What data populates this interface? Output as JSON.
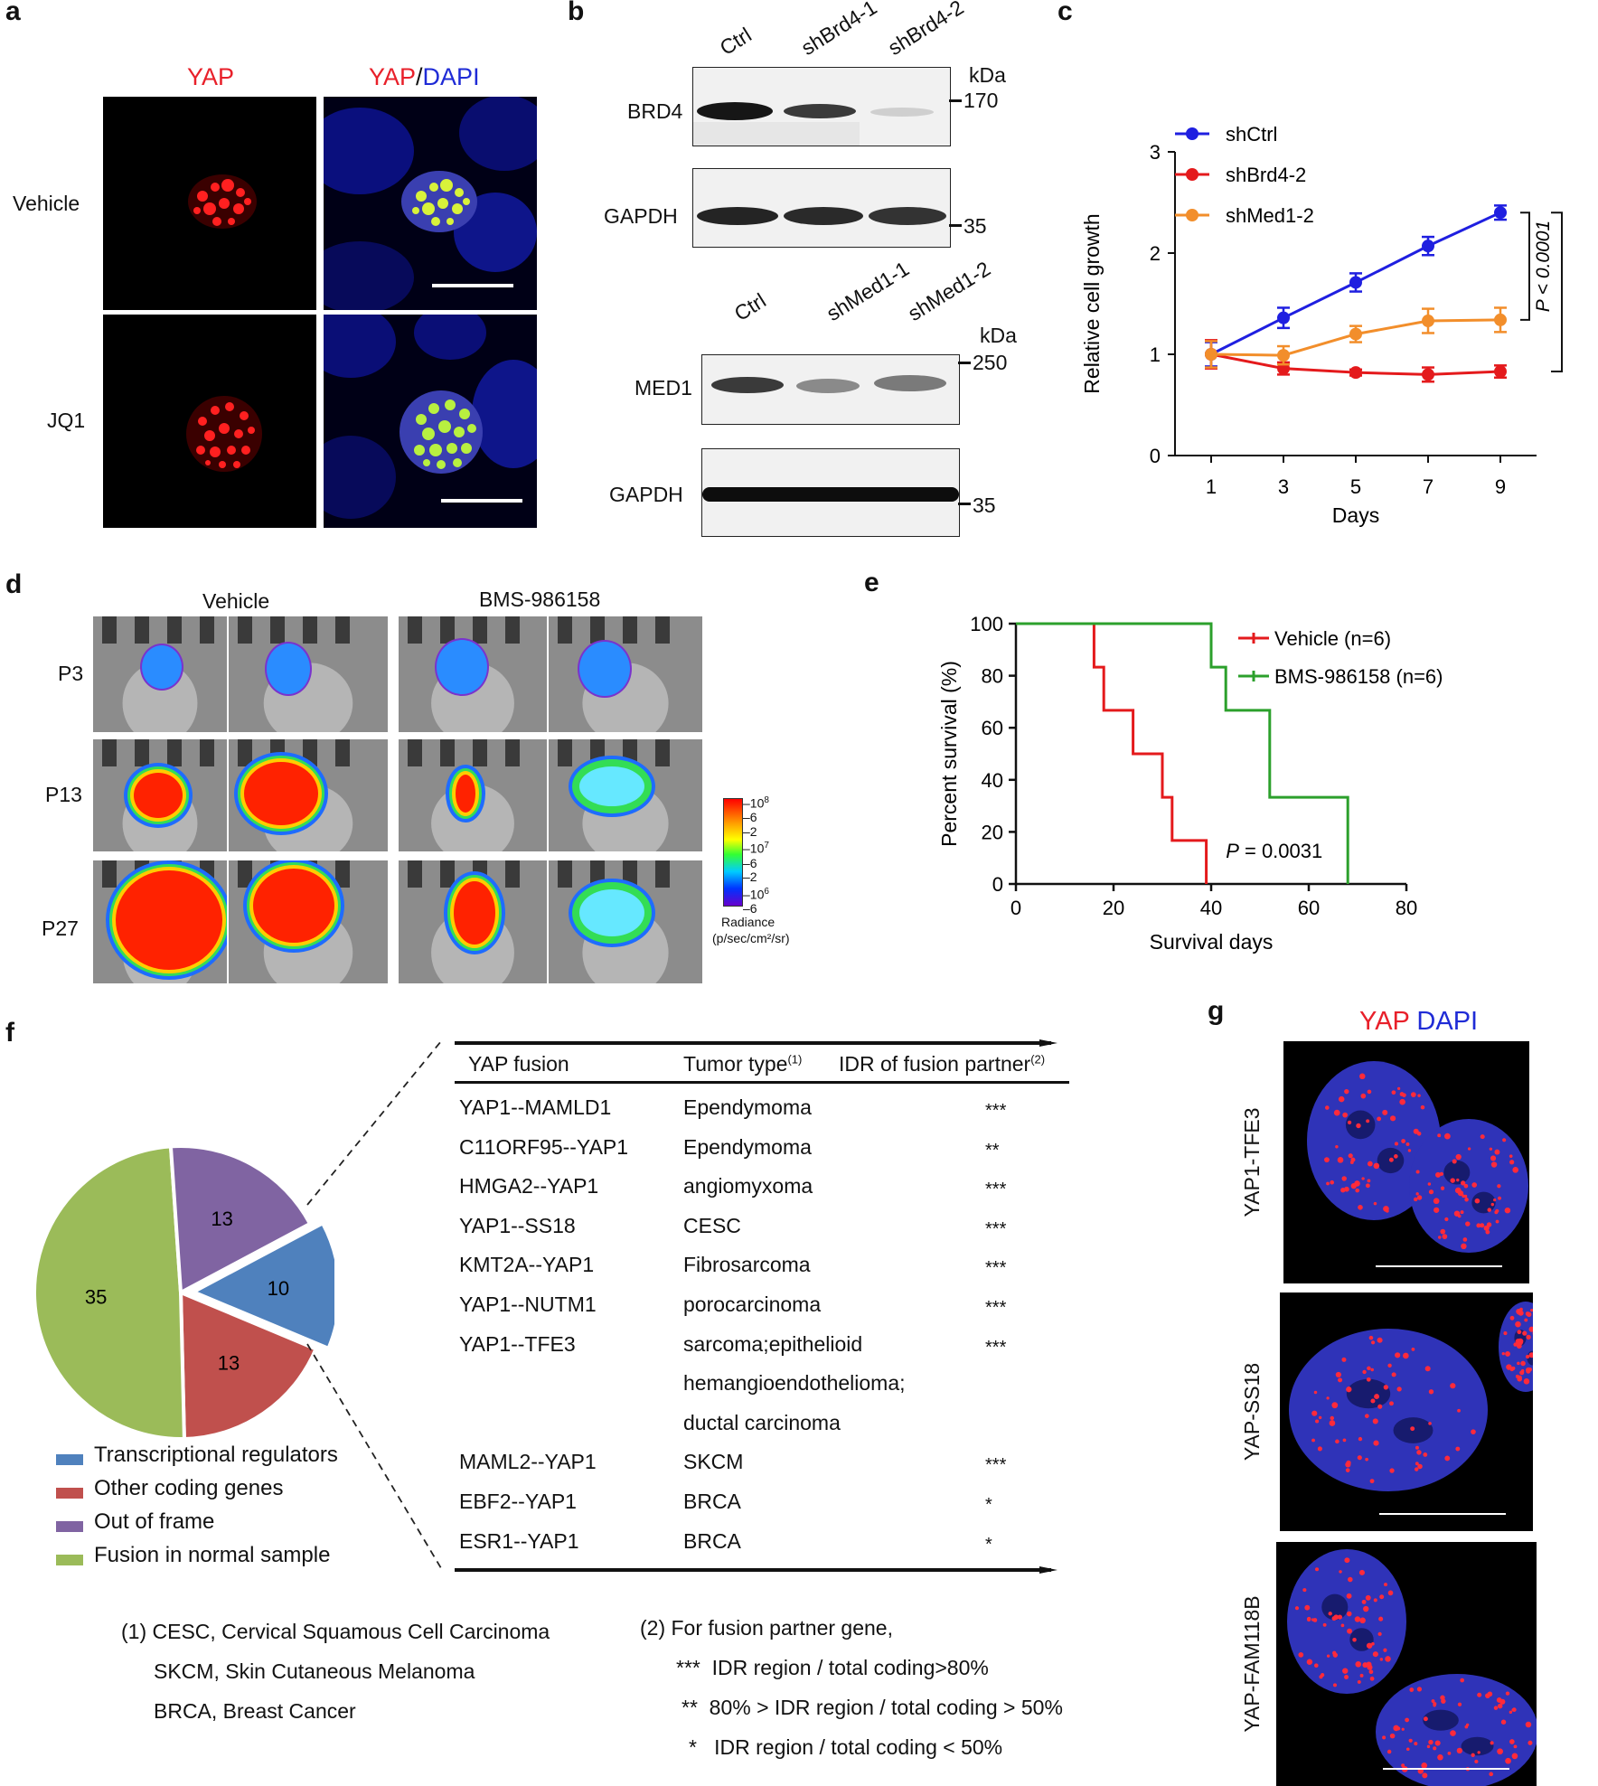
{
  "panel_a": {
    "letter": "a",
    "col1": "YAP",
    "col2_yap": "YAP",
    "col2_slash": "/",
    "col2_dapi": "DAPI",
    "row1": "Vehicle",
    "row2": "JQ1"
  },
  "panel_b": {
    "letter": "b",
    "top_lanes": [
      "Ctrl",
      "shBrd4-1",
      "shBrd4-2"
    ],
    "top_rows": [
      "BRD4",
      "GAPDH"
    ],
    "top_kda": "kDa",
    "top_markers": [
      "170",
      "35"
    ],
    "bottom_lanes": [
      "Ctrl",
      "shMed1-1",
      "shMed1-2"
    ],
    "bottom_rows": [
      "MED1",
      "GAPDH"
    ],
    "bottom_kda": "kDa",
    "bottom_markers": [
      "250",
      "35"
    ]
  },
  "panel_c": {
    "letter": "c",
    "chart_data": {
      "type": "line",
      "xlabel": "Days",
      "ylabel": "Relative cell growth",
      "x": [
        1,
        3,
        5,
        7,
        9
      ],
      "xlim": [
        0,
        10
      ],
      "ylim": [
        0,
        3
      ],
      "yticks": [
        0,
        1,
        2,
        3
      ],
      "legend_position": "top-left",
      "series": [
        {
          "name": "shCtrl",
          "color": "#1f1fe0",
          "values": [
            1.0,
            1.36,
            1.71,
            2.07,
            2.4
          ],
          "errors": [
            0.12,
            0.1,
            0.09,
            0.09,
            0.07
          ]
        },
        {
          "name": "shBrd4-2",
          "color": "#e41a1c",
          "values": [
            1.0,
            0.86,
            0.82,
            0.8,
            0.83
          ],
          "errors": [
            0.14,
            0.06,
            0.03,
            0.07,
            0.06
          ]
        },
        {
          "name": "shMed1-2",
          "color": "#f28e2b",
          "values": [
            1.0,
            0.99,
            1.2,
            1.33,
            1.34
          ],
          "errors": [
            0.13,
            0.09,
            0.08,
            0.12,
            0.12
          ]
        }
      ],
      "annotations": [
        "P < 0.0001",
        "P < 0.0001"
      ]
    }
  },
  "panel_d": {
    "letter": "d",
    "col1": "Vehicle",
    "col2": "BMS-986158",
    "rows": [
      "P3",
      "P13",
      "P27"
    ],
    "scale_ticks": [
      "10",
      "6",
      "2",
      "10",
      "6",
      "2",
      "10",
      "6"
    ],
    "scale_exp": [
      "8",
      "7",
      "6"
    ],
    "scale_label_1": "Radiance",
    "scale_label_2": "(p/sec/cm²/sr)"
  },
  "panel_e": {
    "letter": "e",
    "chart_data": {
      "type": "line",
      "xlabel": "Survival days",
      "ylabel": "Percent survival (%)",
      "xlim": [
        0,
        80
      ],
      "ylim": [
        0,
        100
      ],
      "xticks": [
        0,
        20,
        40,
        60,
        80
      ],
      "yticks": [
        0,
        20,
        40,
        60,
        80,
        100
      ],
      "legend_position": "top-right",
      "series": [
        {
          "name": "Vehicle (n=6)",
          "color": "#e41a1c",
          "steps": [
            [
              0,
              100
            ],
            [
              16,
              100
            ],
            [
              16,
              83.3
            ],
            [
              18,
              83.3
            ],
            [
              18,
              66.7
            ],
            [
              24,
              66.7
            ],
            [
              24,
              50
            ],
            [
              30,
              50
            ],
            [
              30,
              33.3
            ],
            [
              32,
              33.3
            ],
            [
              32,
              16.7
            ],
            [
              39,
              16.7
            ],
            [
              39,
              0
            ]
          ]
        },
        {
          "name": "BMS-986158 (n=6)",
          "color": "#2ca02c",
          "steps": [
            [
              0,
              100
            ],
            [
              40,
              100
            ],
            [
              40,
              83.3
            ],
            [
              43,
              83.3
            ],
            [
              43,
              66.7
            ],
            [
              52,
              66.7
            ],
            [
              52,
              33.3
            ],
            [
              68,
              33.3
            ],
            [
              68,
              0
            ]
          ]
        }
      ],
      "annotation": "P = 0.0031"
    }
  },
  "panel_f": {
    "letter": "f",
    "chart_data": {
      "type": "pie",
      "values": [
        10,
        13,
        35,
        13
      ],
      "labels": [
        "Transcriptional regulators",
        "Other coding genes",
        "Fusion in normal sample",
        "Out of frame"
      ],
      "colors": [
        "#4f81bd",
        "#c0504d",
        "#9bbb59",
        "#8064a2"
      ]
    },
    "legend": [
      "Transcriptional regulators",
      "Other coding genes",
      "Out of frame",
      "Fusion in normal sample"
    ],
    "legend_colors": [
      "#4f81bd",
      "#c0504d",
      "#8064a2",
      "#9bbb59"
    ],
    "table": {
      "headers": [
        "YAP fusion",
        "Tumor type",
        "IDR of fusion partner"
      ],
      "header_sup": [
        "(1)",
        "(2)"
      ],
      "rows": [
        {
          "fusion": "YAP1--MAMLD1",
          "tumor": "Ependymoma",
          "idr": "***"
        },
        {
          "fusion": "C11ORF95--YAP1",
          "tumor": "Ependymoma",
          "idr": "**"
        },
        {
          "fusion": "HMGA2--YAP1",
          "tumor": "angiomyxoma",
          "idr": "***"
        },
        {
          "fusion": "YAP1--SS18",
          "tumor": "CESC",
          "idr": "***"
        },
        {
          "fusion": "KMT2A--YAP1",
          "tumor": "Fibrosarcoma",
          "idr": "***"
        },
        {
          "fusion": "YAP1--NUTM1",
          "tumor": "porocarcinoma",
          "idr": "***"
        },
        {
          "fusion": "YAP1--TFE3",
          "tumor": "sarcoma;epithelioid",
          "idr": "***"
        },
        {
          "fusion": "",
          "tumor": "hemangioendothelioma;",
          "idr": ""
        },
        {
          "fusion": "",
          "tumor": "ductal carcinoma",
          "idr": ""
        },
        {
          "fusion": "MAML2--YAP1",
          "tumor": "SKCM",
          "idr": "***"
        },
        {
          "fusion": "EBF2--YAP1",
          "tumor": "BRCA",
          "idr": "*"
        },
        {
          "fusion": "ESR1--YAP1",
          "tumor": "BRCA",
          "idr": "*"
        }
      ]
    },
    "footnote1": [
      "(1) CESC, Cervical Squamous Cell Carcinoma",
      "SKCM, Skin Cutaneous Melanoma",
      "BRCA, Breast Cancer"
    ],
    "footnote2": [
      "(2)  For fusion partner gene,",
      "***  IDR region / total coding>80%",
      "**  80% > IDR region / total coding > 50%",
      "*   IDR region / total coding < 50%"
    ]
  },
  "panel_g": {
    "letter": "g",
    "title_yap": "YAP",
    "title_dapi": "DAPI",
    "rows": [
      "YAP1-TFE3",
      "YAP-SS18",
      "YAP-FAM118B"
    ]
  }
}
